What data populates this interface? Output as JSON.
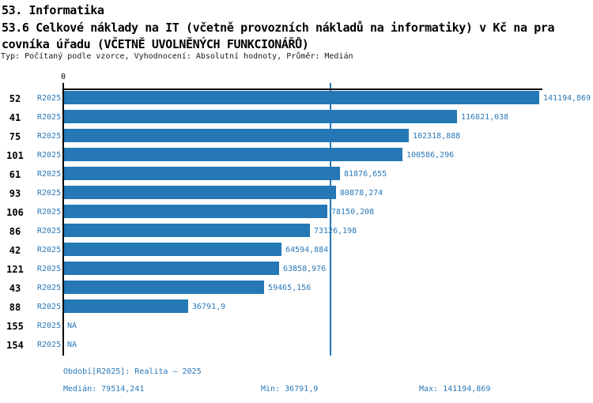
{
  "header": {
    "line1": "53. Informatika",
    "line2": "53.6 Celkové náklady na IT (včetně provozních nákladů na informatiky) v Kč na pra",
    "line3": "covníka úřadu (VČETNĚ UVOLNĚNÝCH FUNKCIONÁŘŮ)",
    "subtitle": "Typ: Počítaný podle vzorce, Vyhodnocení: Absolutní hodnoty, Průměr: Medián"
  },
  "chart_data": {
    "type": "bar",
    "orientation": "horizontal",
    "title": "53.6 Celkové náklady na IT (včetně provozních nákladů na informatiky) v Kč na pracovníka úřadu (VČETNĚ UVOLNĚNÝCH FUNKCIONÁŘŮ)",
    "axis_zero_label": "0",
    "xlim": [
      0,
      141194.869
    ],
    "grid": false,
    "legend_position": "none",
    "median_value": 79514.241,
    "xmax": 141194.869,
    "rows": [
      {
        "id": "52",
        "period": "R2025",
        "value": 141194.869,
        "label": "141194,869"
      },
      {
        "id": "41",
        "period": "R2025",
        "value": 116821.038,
        "label": "116821,038"
      },
      {
        "id": "75",
        "period": "R2025",
        "value": 102318.888,
        "label": "102318,888"
      },
      {
        "id": "101",
        "period": "R2025",
        "value": 100586.296,
        "label": "100586,296"
      },
      {
        "id": "61",
        "period": "R2025",
        "value": 81876.655,
        "label": "81876,655"
      },
      {
        "id": "93",
        "period": "R2025",
        "value": 80878.274,
        "label": "80878,274"
      },
      {
        "id": "106",
        "period": "R2025",
        "value": 78150.208,
        "label": "78150,208"
      },
      {
        "id": "86",
        "period": "R2025",
        "value": 73126.198,
        "label": "73126,198"
      },
      {
        "id": "42",
        "period": "R2025",
        "value": 64594.884,
        "label": "64594,884"
      },
      {
        "id": "121",
        "period": "R2025",
        "value": 63858.976,
        "label": "63858,976"
      },
      {
        "id": "43",
        "period": "R2025",
        "value": 59465.156,
        "label": "59465,156"
      },
      {
        "id": "88",
        "period": "R2025",
        "value": 36791.9,
        "label": "36791,9"
      },
      {
        "id": "155",
        "period": "R2025",
        "value": null,
        "label": "NA"
      },
      {
        "id": "154",
        "period": "R2025",
        "value": null,
        "label": "NA"
      }
    ],
    "colors": {
      "bar": "#2578b5",
      "text_blue": "#2a78b8",
      "axis": "#000000",
      "title_text": "#000000",
      "subtitle_text": "#1a1a1a"
    }
  },
  "footer": {
    "period_line": "Období[R2025]: Realita – 2025",
    "median": "Medián: 79514,241",
    "min": "Min: 36791,9",
    "max": "Max: 141194,869"
  }
}
